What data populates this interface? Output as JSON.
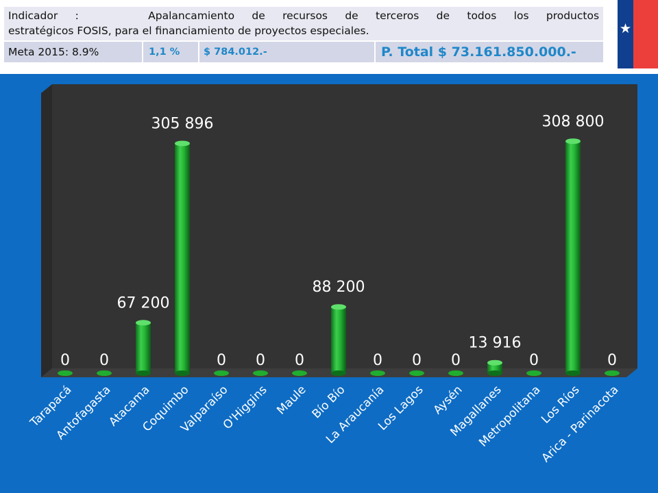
{
  "header": {
    "indicator_lead": "Indicador :    Apalancamiento de recursos de terceros de todos los productos",
    "indicator_tail": "estratégicos FOSIS, para el financiamiento de proyectos especiales.",
    "meta_label": "Meta 2015: 8.9%",
    "percent": "1,1 %",
    "amount": "$ 784.012.-",
    "total": "P. Total $ 73.161.850.000.-"
  },
  "colors": {
    "background_panel": "#0e6cc4",
    "plot_background": "#333333",
    "bar_green": "#1fae2f",
    "label_text": "#ffffff",
    "flag_red": "#ec3f3c",
    "flag_blue": "#0f3f8e"
  },
  "chart_data": {
    "type": "bar",
    "style": "3d-cylinder",
    "categories": [
      "Tarapacá",
      "Antofagasta",
      "Atacama",
      "Coquimbo",
      "Valparaíso",
      "O'Higgins",
      "Maule",
      "Bío Bío",
      "La Araucanía",
      "Los Lagos",
      "Aysén",
      "Magallanes",
      "Metropolitana",
      "Los Ríos",
      "Arica - Parinacota"
    ],
    "values": [
      0,
      0,
      67200,
      305896,
      0,
      0,
      0,
      88200,
      0,
      0,
      0,
      13916,
      0,
      308800,
      0
    ],
    "data_labels": [
      "0",
      "0",
      "67 200",
      "305 896",
      "0",
      "0",
      "0",
      "88 200",
      "0",
      "0",
      "0",
      "13 916",
      "0",
      "308 800",
      "0"
    ],
    "title": "",
    "xlabel": "",
    "ylabel": "",
    "ylim": [
      0,
      330000
    ],
    "grid": false,
    "legend": "none"
  }
}
